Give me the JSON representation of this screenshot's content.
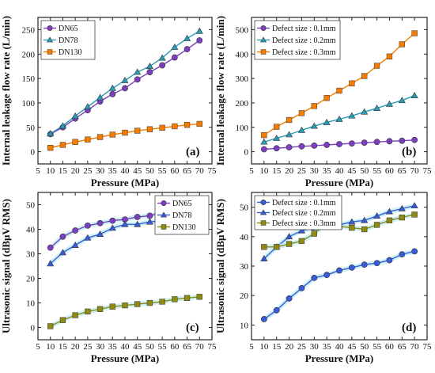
{
  "colors": {
    "purple": "#7B3FBF",
    "teal": "#2A9DB5",
    "orange": "#F57C00",
    "olive": "#8F8A12",
    "blue": "#3A5BD9",
    "glow": "#B6ECF5"
  },
  "chart_data": [
    {
      "type": "line",
      "panel_label": "(a)",
      "xlabel": "Pressure (MPa)",
      "ylabel": "Internal leakage flow rate (L/min)",
      "xlim": [
        5,
        75
      ],
      "ylim": [
        -25,
        275
      ],
      "xticks": [
        5,
        10,
        15,
        20,
        25,
        30,
        35,
        40,
        45,
        50,
        55,
        60,
        65,
        70,
        75
      ],
      "yticks": [
        0,
        50,
        100,
        150,
        200,
        250
      ],
      "legend": "top-left",
      "x": [
        10,
        15,
        20,
        25,
        30,
        35,
        40,
        45,
        50,
        55,
        60,
        65,
        70
      ],
      "series": [
        {
          "name": "DN65",
          "color": "#7B3FBF",
          "marker": "circle",
          "values": [
            36,
            50,
            68,
            85,
            103,
            118,
            130,
            148,
            163,
            177,
            193,
            210,
            228
          ]
        },
        {
          "name": "DN78",
          "color": "#2A9DB5",
          "marker": "triangle",
          "values": [
            37,
            53,
            73,
            92,
            111,
            130,
            146,
            163,
            175,
            192,
            214,
            232,
            247
          ]
        },
        {
          "name": "DN130",
          "color": "#F57C00",
          "marker": "square",
          "values": [
            8,
            14,
            20,
            25,
            30,
            35,
            39,
            43,
            46,
            49,
            52,
            55,
            57
          ]
        }
      ]
    },
    {
      "type": "line",
      "panel_label": "(b)",
      "xlabel": "Pressure (MPa)",
      "ylabel": "Internal leakage flow rate (L/min)",
      "xlim": [
        5,
        75
      ],
      "ylim": [
        -50,
        550
      ],
      "xticks": [
        5,
        10,
        15,
        20,
        25,
        30,
        35,
        40,
        45,
        50,
        55,
        60,
        65,
        70,
        75
      ],
      "yticks": [
        0,
        100,
        200,
        300,
        400,
        500
      ],
      "legend": "top-left",
      "x": [
        10,
        15,
        20,
        25,
        30,
        35,
        40,
        45,
        50,
        55,
        60,
        65,
        70
      ],
      "series": [
        {
          "name": "Defect size : 0.1mm",
          "color": "#7B3FBF",
          "marker": "circle",
          "values": [
            10,
            14,
            18,
            22,
            25,
            28,
            31,
            34,
            37,
            40,
            43,
            45,
            48
          ]
        },
        {
          "name": "Defect size : 0.2mm",
          "color": "#2A9DB5",
          "marker": "triangle",
          "values": [
            40,
            55,
            70,
            88,
            105,
            120,
            133,
            147,
            163,
            178,
            195,
            210,
            230
          ]
        },
        {
          "name": "Defect size : 0.3mm",
          "color": "#F57C00",
          "marker": "square",
          "values": [
            68,
            102,
            130,
            158,
            187,
            220,
            250,
            280,
            310,
            352,
            390,
            440,
            485
          ]
        }
      ]
    },
    {
      "type": "line",
      "panel_label": "(c)",
      "xlabel": "Pressure (MPa)",
      "ylabel": "Ultrasonic signal (dBμV RMS)",
      "xlim": [
        5,
        75
      ],
      "ylim": [
        -5,
        55
      ],
      "xticks": [
        5,
        10,
        15,
        20,
        25,
        30,
        35,
        40,
        45,
        50,
        55,
        60,
        65,
        70,
        75
      ],
      "yticks": [
        0,
        10,
        20,
        30,
        40,
        50
      ],
      "legend": "top-right",
      "x": [
        10,
        15,
        20,
        25,
        30,
        35,
        40,
        45,
        50,
        55,
        60,
        65,
        70
      ],
      "series": [
        {
          "name": "DN65",
          "color": "#7B3FBF",
          "marker": "circle",
          "values": [
            32.5,
            37,
            39.5,
            41.5,
            42.5,
            43.5,
            44,
            45,
            45.5,
            47,
            48.5,
            49.5,
            50.5
          ]
        },
        {
          "name": "DN78",
          "color": "#3A5BD9",
          "marker": "triangle",
          "values": [
            26,
            30.5,
            33.5,
            36.5,
            38,
            40.5,
            42,
            42,
            43,
            43.5,
            46.5,
            48,
            48.5
          ]
        },
        {
          "name": "DN130",
          "color": "#8F8A12",
          "marker": "square",
          "values": [
            0.5,
            3,
            5,
            6.5,
            7.5,
            8.5,
            9,
            9.5,
            10,
            10.5,
            11.5,
            12,
            12.5
          ]
        }
      ]
    },
    {
      "type": "line",
      "panel_label": "(d)",
      "xlabel": "Pressure (MPa)",
      "ylabel": "Ultrasonic signal (dBμV RMS)",
      "xlim": [
        5,
        75
      ],
      "ylim": [
        5,
        55
      ],
      "xticks": [
        5,
        10,
        15,
        20,
        25,
        30,
        35,
        40,
        45,
        50,
        55,
        60,
        65,
        70,
        75
      ],
      "yticks": [
        10,
        20,
        30,
        40,
        50
      ],
      "legend": "top-left",
      "x": [
        10,
        15,
        20,
        25,
        30,
        35,
        40,
        45,
        50,
        55,
        60,
        65,
        70
      ],
      "series": [
        {
          "name": "Defect size : 0.1mm",
          "color": "#3A5BD9",
          "marker": "circle",
          "values": [
            12,
            15,
            19,
            22.5,
            26,
            27,
            28.5,
            29.5,
            30.5,
            31,
            32,
            34,
            35
          ]
        },
        {
          "name": "Defect size : 0.2mm",
          "color": "#3A5BD9",
          "marker": "triangle",
          "values": [
            32.5,
            36.5,
            40,
            42,
            43,
            44,
            44,
            45,
            45.5,
            47,
            48.5,
            49.5,
            50.5
          ]
        },
        {
          "name": "Defect size : 0.3mm",
          "color": "#8F8A12",
          "marker": "square",
          "values": [
            36.5,
            36.5,
            37.5,
            38.5,
            41,
            44.5,
            43.5,
            43,
            42.5,
            44,
            45.5,
            46.5,
            47.5
          ]
        }
      ]
    }
  ]
}
